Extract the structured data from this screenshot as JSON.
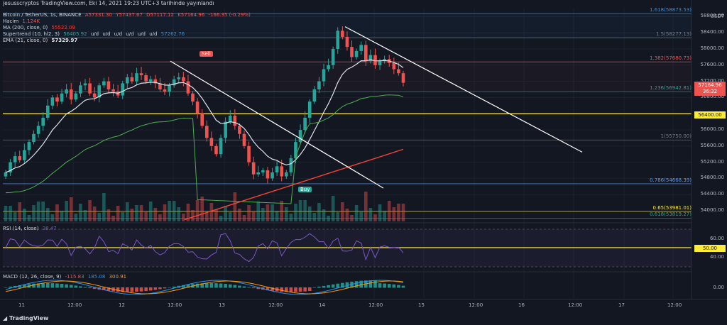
{
  "header": {
    "publisher": "jesusscryptos TradingView.com, Eki 14, 2021 19:23 UTC+3 tarihinde yayınlandı",
    "symbol": "Bitcoin / TetherUS, 1s, BINANCE",
    "ohlc": {
      "o": "A57331.30",
      "h": "Y57437.67",
      "l": "D57117.12",
      "c": "K57164.96",
      "chg": "-166.35 (-0.29%)"
    },
    "volume": {
      "label": "Hacim",
      "value": "1.124K"
    },
    "ma": {
      "label": "MA (200, close, 0)",
      "value": "55522.09"
    },
    "supertrend": {
      "label": "Supertrend (10, hl2, 3)",
      "values": [
        "56405.92",
        "u/d",
        "u/d",
        "u/d",
        "u/d",
        "u/d",
        "u/d",
        "57262.76"
      ]
    },
    "ema": {
      "label": "EMA (21, close, 0)",
      "value": "57329.97"
    }
  },
  "colors": {
    "bg": "#131722",
    "up": "#26a69a",
    "down": "#ef5350",
    "yellow": "#ffeb3b",
    "ma": "#f44336",
    "ema": "#e0e3eb",
    "rsi": "#7e57c2",
    "fib": "#787b86"
  },
  "price_axis": {
    "unit": "USDT",
    "ticks": [
      "58800.00",
      "58400.00",
      "58000.00",
      "57600.00",
      "57200.00",
      "56800.00",
      "56000.00",
      "55600.00",
      "55200.00",
      "54800.00",
      "54400.00",
      "54000.00"
    ],
    "current_price": "57164.96",
    "countdown": "36:32",
    "level_badge": "56400.00"
  },
  "fib_levels": [
    {
      "label": "1.618(58873.53)",
      "price": 58873.53,
      "color": "#2196f3"
    },
    {
      "label": "1.5(58277.13)",
      "price": 58277.13,
      "color": "#787b86"
    },
    {
      "label": "1.382(57680.73)",
      "price": 57680.73,
      "color": "#ef5350"
    },
    {
      "label": "1.236(56942.81)",
      "price": 56942.81,
      "color": "#26a69a"
    },
    {
      "label": "1(55750.00)",
      "price": 55750.0,
      "color": "#787b86"
    },
    {
      "label": "0.786(54668.39)",
      "price": 54668.39,
      "color": "#5b9cf6"
    },
    {
      "label": "0.65(53981.01)",
      "price": 53981.01,
      "color": "#ffeb3b"
    },
    {
      "label": "0.618(53819.27)",
      "price": 53819.27,
      "color": "#26a69a"
    }
  ],
  "signals": {
    "sell": "Sell",
    "buy": "Buy"
  },
  "rsi": {
    "label": "RSI (14, close)",
    "value": "38.47",
    "ticks": [
      "60.00",
      "50.00",
      "40.00"
    ]
  },
  "macd": {
    "label": "MACD (12, 26, close, 9)",
    "values": [
      "-115.83",
      "185.08",
      "300.91"
    ],
    "ticks": [
      "0.00"
    ]
  },
  "time_axis": [
    "11",
    "12:00",
    "12",
    "12:00",
    "13",
    "12:00",
    "14",
    "12:00",
    "15",
    "12:00",
    "16",
    "12:00",
    "17",
    "12:00"
  ],
  "logo": "TradingView",
  "chart_data": {
    "type": "candlestick",
    "title": "Bitcoin / TetherUS, 1s, BINANCE",
    "y_range": [
      53700,
      59000
    ],
    "close_series": [
      54950,
      55200,
      55350,
      55250,
      55500,
      55700,
      55900,
      56100,
      56300,
      56600,
      56800,
      56700,
      56900,
      57000,
      56750,
      56900,
      57100,
      57150,
      56900,
      56800,
      57100,
      57200,
      57000,
      56950,
      56850,
      57150,
      57300,
      57200,
      57400,
      57350,
      57200,
      57250,
      57150,
      57000,
      56950,
      57100,
      57250,
      57300,
      57200,
      56900,
      56700,
      56400,
      56100,
      55800,
      55600,
      55400,
      55800,
      56200,
      56350,
      56100,
      55900,
      55600,
      55200,
      54900,
      54950,
      55000,
      54800,
      54950,
      55100,
      54850,
      54950,
      55300,
      55700,
      56000,
      56300,
      56700,
      57000,
      57200,
      57500,
      57600,
      58000,
      58450,
      58300,
      58050,
      57800,
      57950,
      58100,
      57700,
      57850,
      57600,
      57700,
      57750,
      57650,
      57500,
      57400,
      57164.96
    ],
    "horizontal_levels": [
      56400.0
    ],
    "current_price": 57164.96
  }
}
